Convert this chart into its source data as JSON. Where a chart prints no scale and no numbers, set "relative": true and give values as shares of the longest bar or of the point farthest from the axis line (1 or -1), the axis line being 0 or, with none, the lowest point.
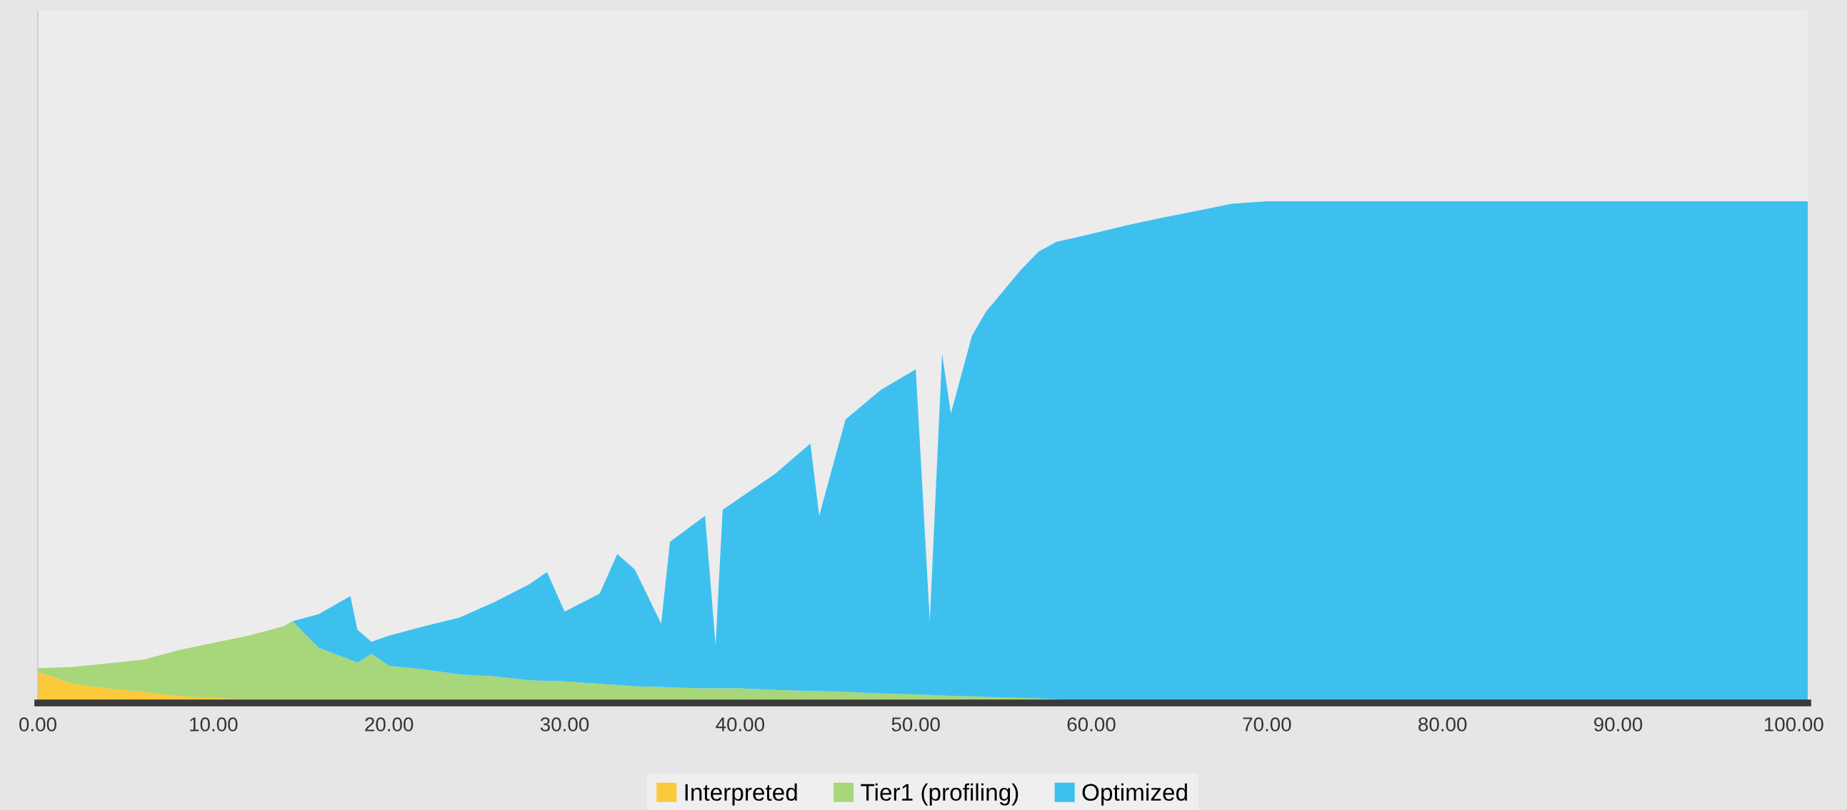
{
  "chart_data": {
    "type": "area",
    "stacked": true,
    "relative": true,
    "legend": "bottom",
    "grid": false,
    "x": [
      0,
      2,
      4,
      6,
      8,
      10,
      12,
      14,
      14.5,
      16,
      17.8,
      18.2,
      19,
      20,
      22,
      24,
      26,
      28,
      29,
      30,
      32,
      33,
      34,
      35.5,
      36,
      38,
      38.6,
      39,
      40,
      42,
      44,
      44.5,
      46,
      48,
      50,
      50.8,
      51.5,
      52,
      53.2,
      54,
      56,
      57,
      58,
      60,
      62,
      64,
      66,
      68,
      70,
      80,
      90,
      100.8
    ],
    "xlim": [
      0,
      100.8
    ],
    "xticks": [
      {
        "value": 0,
        "label": "0.00"
      },
      {
        "value": 10,
        "label": "10.00"
      },
      {
        "value": 20,
        "label": "20.00"
      },
      {
        "value": 30,
        "label": "30.00"
      },
      {
        "value": 40,
        "label": "40.00"
      },
      {
        "value": 50,
        "label": "50.00"
      },
      {
        "value": 60,
        "label": "60.00"
      },
      {
        "value": 70,
        "label": "70.00"
      },
      {
        "value": 80,
        "label": "80.00"
      },
      {
        "value": 90,
        "label": "90.00"
      },
      {
        "value": 100,
        "label": "100.00"
      }
    ],
    "series": [
      {
        "name": "Interpreted",
        "color": "#fcc93a",
        "values": [
          0.062,
          0.038,
          0.029,
          0.022,
          0.014,
          0.01,
          0.007,
          0.005,
          0.005,
          0.004,
          0.003,
          0.003,
          0.004,
          0.004,
          0.003,
          0.003,
          0.003,
          0.002,
          0.002,
          0.002,
          0.002,
          0.002,
          0.001,
          0.001,
          0.001,
          0.001,
          0.001,
          0.001,
          0.001,
          0,
          0,
          0,
          0,
          0,
          0,
          0,
          0,
          0,
          0,
          0,
          0,
          0,
          0,
          0,
          0,
          0,
          0,
          0,
          0,
          0,
          0,
          0
        ]
      },
      {
        "name": "Tier1 (profiling)",
        "color": "#a8d67a",
        "values": [
          0.007,
          0.034,
          0.05,
          0.064,
          0.091,
          0.11,
          0.127,
          0.148,
          0.158,
          0.106,
          0.083,
          0.077,
          0.094,
          0.07,
          0.064,
          0.054,
          0.05,
          0.043,
          0.042,
          0.041,
          0.036,
          0.034,
          0.032,
          0.031,
          0.03,
          0.028,
          0.028,
          0.028,
          0.028,
          0.026,
          0.024,
          0.024,
          0.022,
          0.019,
          0.017,
          0.016,
          0.015,
          0.014,
          0.013,
          0.012,
          0.01,
          0.009,
          0.007,
          0.002,
          0,
          0,
          0,
          0,
          0,
          0,
          0,
          0
        ]
      },
      {
        "name": "Optimized",
        "color": "#3ec0ef",
        "values": [
          0,
          0,
          0,
          0,
          0,
          0,
          0,
          0,
          0,
          0.067,
          0.127,
          0.066,
          0.024,
          0.06,
          0.086,
          0.113,
          0.148,
          0.192,
          0.217,
          0.139,
          0.18,
          0.261,
          0.233,
          0.126,
          0.29,
          0.344,
          0.086,
          0.356,
          0.38,
          0.431,
          0.493,
          0.349,
          0.543,
          0.605,
          0.648,
          0.147,
          0.681,
          0.563,
          0.719,
          0.768,
          0.854,
          0.891,
          0.912,
          0.933,
          0.952,
          0.967,
          0.981,
          0.995,
          1,
          1,
          1,
          1
        ]
      }
    ]
  }
}
